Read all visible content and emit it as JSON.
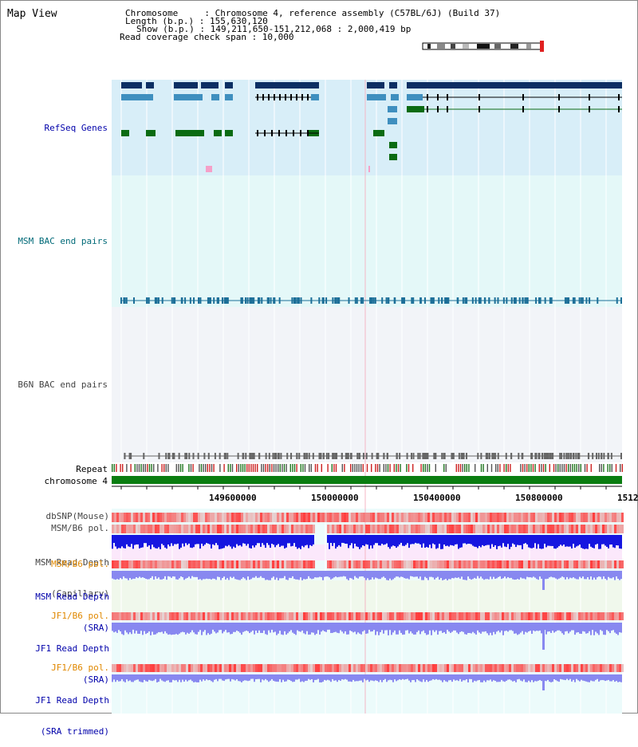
{
  "app": {
    "title": "Map View"
  },
  "header": {
    "chromosome": "Chromosome     : Chromosome 4, reference assembly (C57BL/6J) (Build 37)",
    "length": "Length (b.p.) : 155,630,120",
    "show": "Show (b.p.) : 149,211,650-151,212,068 : 2,000,419 bp",
    "coverage_span": "Read coverage check span : 10,000"
  },
  "tracks": {
    "refseq": "RefSeq Genes",
    "msm_bac": "MSM BAC end pairs",
    "b6n_bac": "B6N BAC end pairs",
    "repeat": "Repeat",
    "chromosome": "chromosome 4",
    "dbsnp": "dbSNP(Mouse)",
    "msm_b6_pol": "MSM/B6 pol.",
    "msm_depth_cap_1": "MSM Read Depth",
    "msm_depth_cap_2": "(Capillary)",
    "msm_b6_pol_2": "MSM/B6 pol.",
    "msm_depth_sra_1": "MSM Read Depth",
    "msm_depth_sra_2": "(SRA)",
    "jf1_b6_pol": "JF1/B6 pol.",
    "jf1_depth_sra_1": "JF1 Read Depth",
    "jf1_depth_sra_2": "(SRA)",
    "jf1_b6_pol_2": "JF1/B6 pol.",
    "jf1_depth_trim_1": "JF1 Read Depth",
    "jf1_depth_trim_2": "(SRA trimmed)"
  },
  "axis": {
    "ticks": [
      "149600000",
      "150000000",
      "150400000",
      "150800000",
      "1512"
    ]
  },
  "colors": {
    "refseq_bg": "#d8eef8",
    "msm_bg": "#e4f8f8",
    "b6n_bg": "#f2f4f8",
    "gene_dark": "#0c2f63",
    "gene_mid": "#3f8fbf",
    "gene_green": "#0b6b12",
    "msm_line": "#1c6f98",
    "b6n_line": "#666666",
    "chrom_bar": "#0a7d10",
    "snp_red": "#f06a6a",
    "depth_blue": "#1616e0",
    "sra_blue": "#8888f0",
    "label_blue": "#0000aa",
    "label_teal": "#006a78",
    "label_orange": "#e08800",
    "label_gray": "#444444"
  }
}
